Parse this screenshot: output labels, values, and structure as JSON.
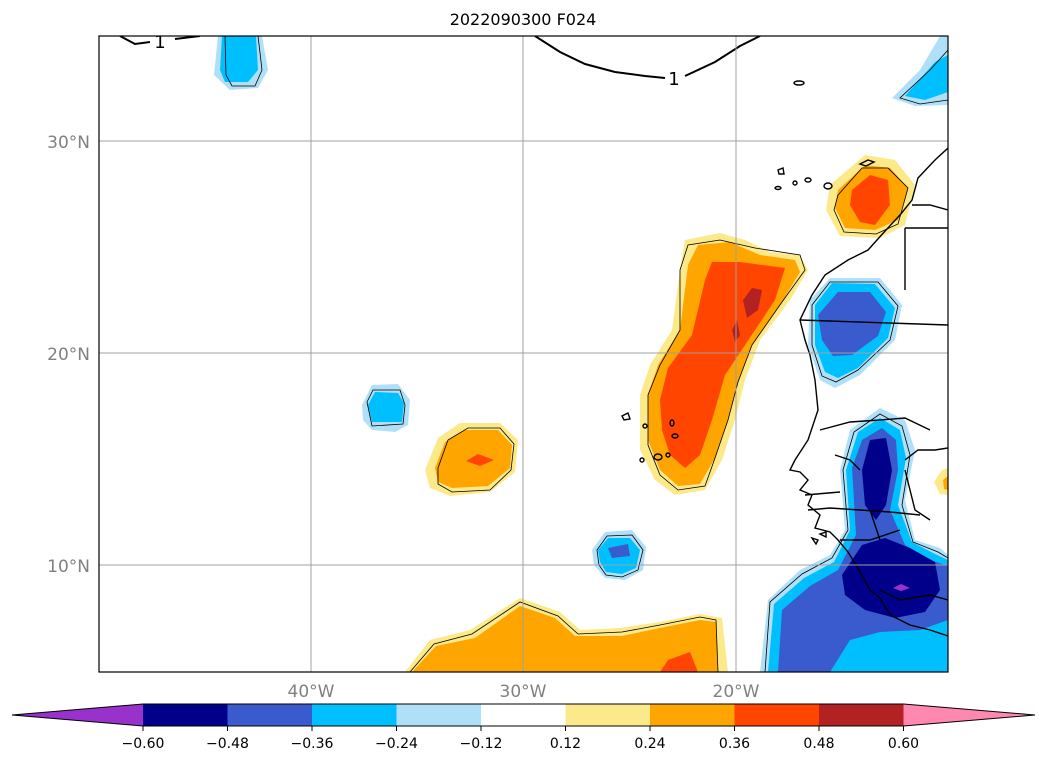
{
  "title": "2022090300 F024",
  "map": {
    "lat_ticks": [
      {
        "value": 30,
        "label": "30°N"
      },
      {
        "value": 20,
        "label": "20°N"
      },
      {
        "value": 10,
        "label": "10°N"
      }
    ],
    "lon_ticks": [
      {
        "value": -40,
        "label": "40°W"
      },
      {
        "value": -30,
        "label": "30°W"
      },
      {
        "value": -20,
        "label": "20°W"
      }
    ],
    "contour_label": "1",
    "gridlines": true
  },
  "colorbar": {
    "colors": [
      "#9932cc",
      "#00008b",
      "#3a5bcd",
      "#00bfff",
      "#b0e0f8",
      "#ffffff",
      "#fce98a",
      "#ffa500",
      "#ff4500",
      "#b22222",
      "#ff88b0"
    ],
    "labels": [
      "−0.60",
      "−0.48",
      "−0.36",
      "−0.24",
      "−0.12",
      "0.12",
      "0.24",
      "0.36",
      "0.48",
      "0.60"
    ]
  }
}
